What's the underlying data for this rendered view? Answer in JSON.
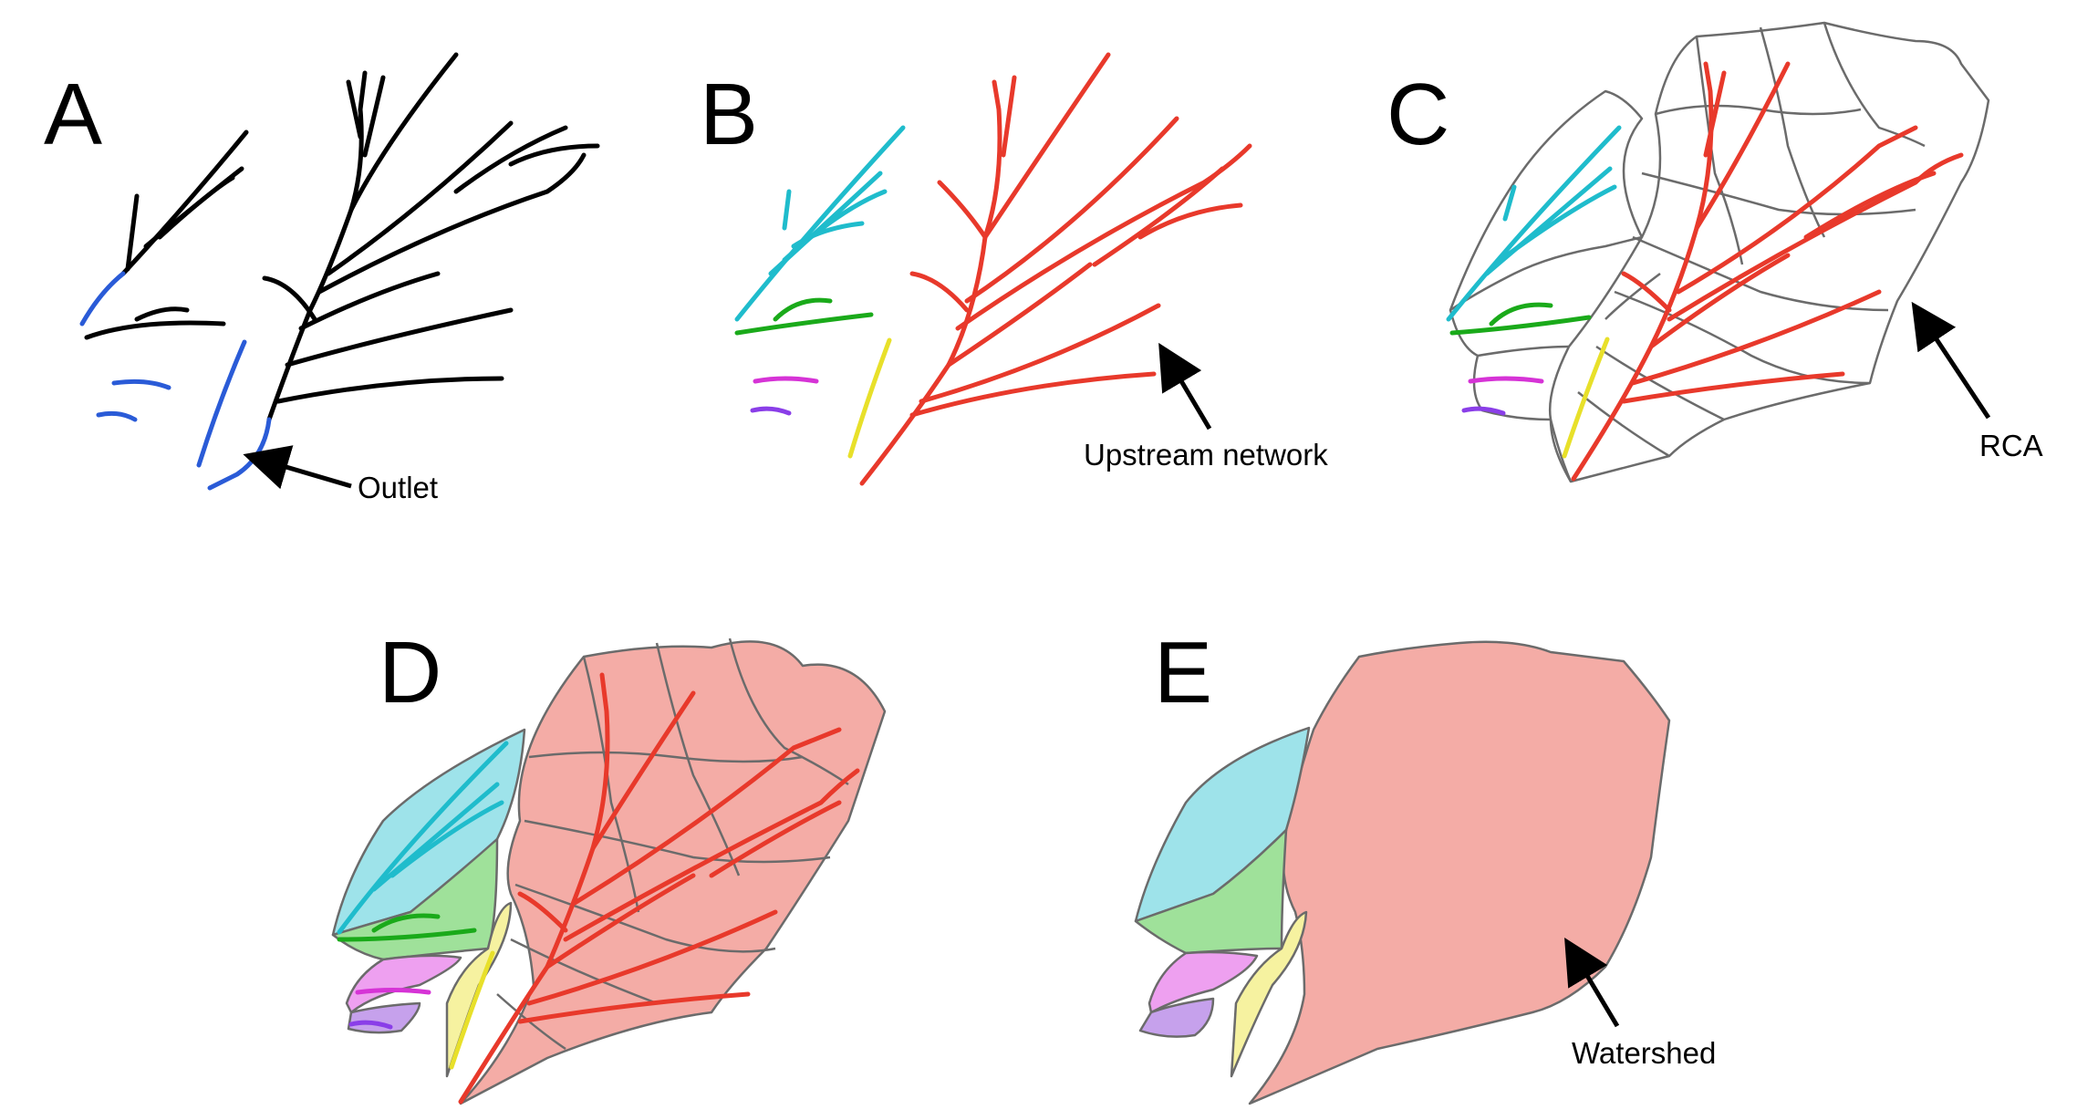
{
  "panels": {
    "A": {
      "letter": "A",
      "annotation": "Outlet"
    },
    "B": {
      "letter": "B",
      "annotation": "Upstream network"
    },
    "C": {
      "letter": "C",
      "annotation": "RCA"
    },
    "D": {
      "letter": "D"
    },
    "E": {
      "letter": "E",
      "annotation": "Watershed"
    }
  },
  "colors": {
    "black_network": "#000000",
    "outlet_blue": "#2a5bd7",
    "upstream_red": "#e8392b",
    "cyan": "#1fbccc",
    "green": "#1aaa1a",
    "magenta": "#d633d6",
    "purple": "#8a3ee8",
    "yellow": "#e8e02a",
    "boundary_gray": "#6b6b6b",
    "fill_red": "#f4aca6",
    "fill_cyan": "#9ee3ea",
    "fill_green": "#9fe19a",
    "fill_magenta": "#eea0f0",
    "fill_purple": "#c6a1ec",
    "fill_yellow": "#f6f2a0"
  }
}
